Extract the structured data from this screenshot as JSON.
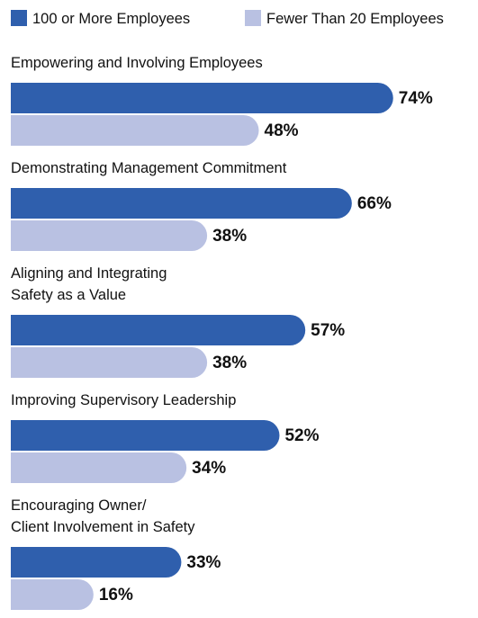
{
  "chart_data": {
    "type": "bar",
    "orientation": "horizontal",
    "categories": [
      "Empowering and Involving Employees",
      "Demonstrating Management Commitment",
      "Aligning and Integrating\nSafety as a Value",
      "Improving Supervisory Leadership",
      "Encouraging Owner/\nClient Involvement in Safety"
    ],
    "series": [
      {
        "name": "100 or More Employees",
        "color": "#2f5fad",
        "values": [
          74,
          66,
          57,
          52,
          33
        ],
        "value_labels": [
          "74%",
          "66%",
          "57%",
          "52%",
          "33%"
        ]
      },
      {
        "name": "Fewer Than 20 Employees",
        "color": "#b9c1e2",
        "values": [
          48,
          38,
          38,
          34,
          16
        ],
        "value_labels": [
          "48%",
          "38%",
          "38%",
          "34%",
          "16%"
        ]
      }
    ],
    "legend": "top"
  }
}
